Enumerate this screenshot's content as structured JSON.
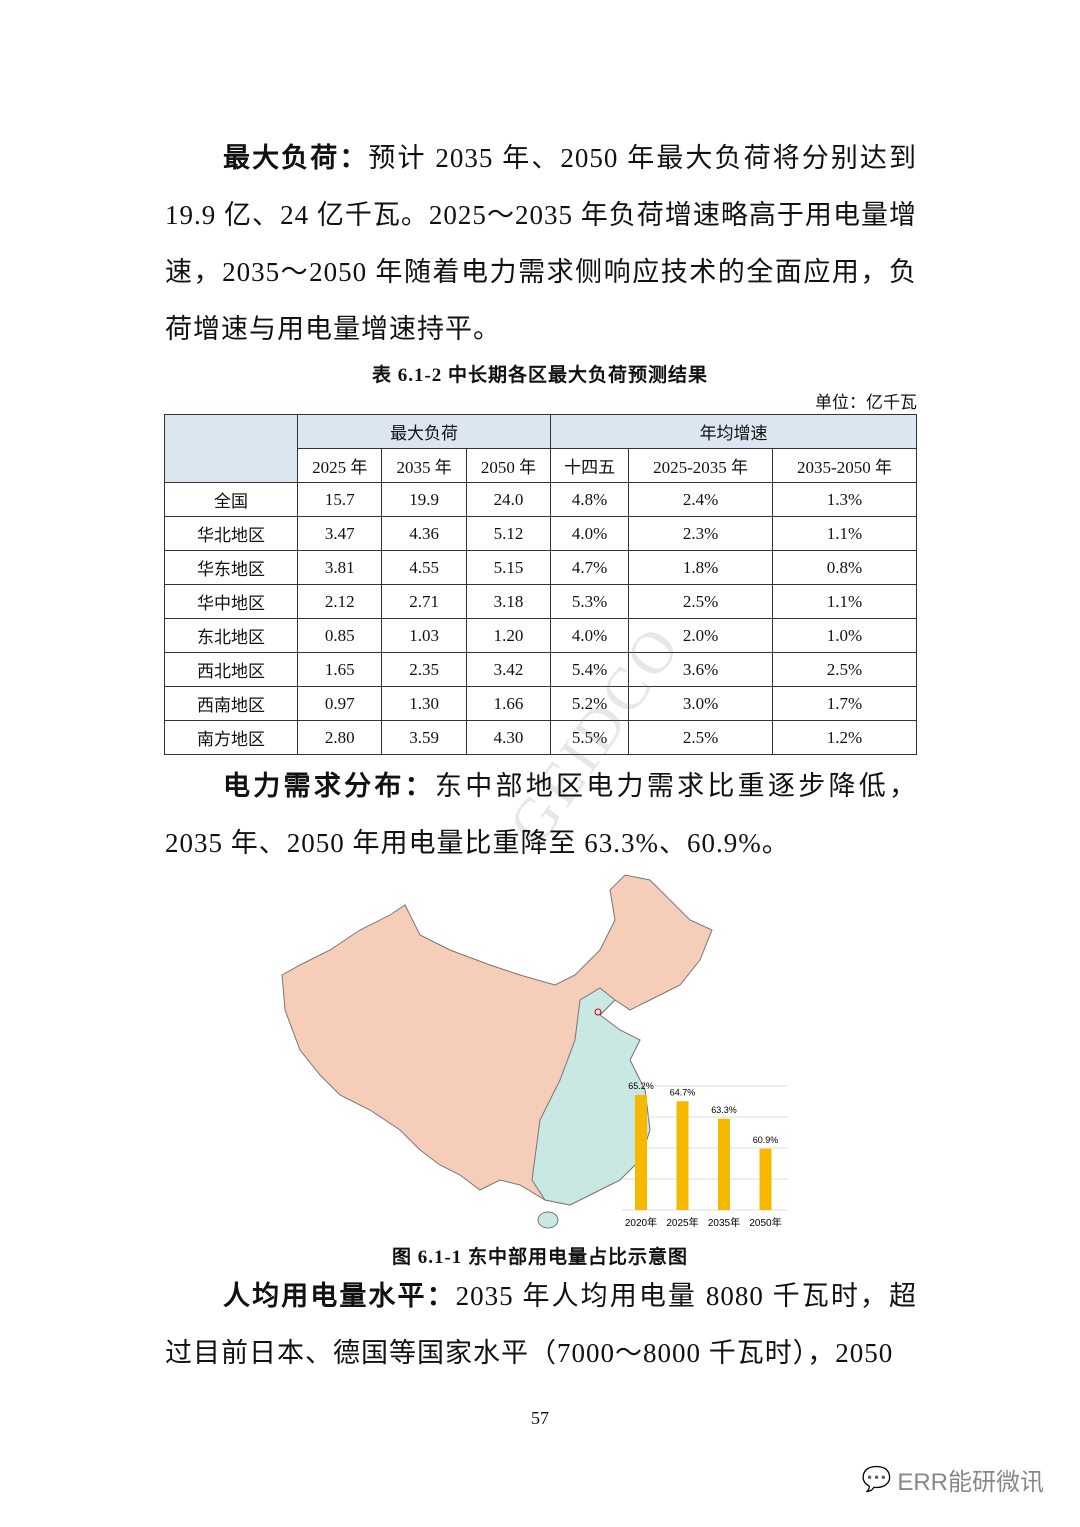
{
  "para1": {
    "heading": "最大负荷：",
    "text": "预计 2035 年、2050 年最大负荷将分别达到 19.9 亿、24 亿千瓦。2025～2035 年负荷增速略高于用电量增速，2035～2050 年随着电力需求侧响应技术的全面应用，负荷增速与用电量增速持平。"
  },
  "table": {
    "caption": "表 6.1-2  中长期各区最大负荷预测结果",
    "unit": "单位：亿千瓦",
    "group_headers": [
      "最大负荷",
      "年均增速"
    ],
    "sub_headers": [
      "2025 年",
      "2035 年",
      "2050 年",
      "十四五",
      "2025-2035 年",
      "2035-2050 年"
    ],
    "rows": [
      [
        "全国",
        "15.7",
        "19.9",
        "24.0",
        "4.8%",
        "2.4%",
        "1.3%"
      ],
      [
        "华北地区",
        "3.47",
        "4.36",
        "5.12",
        "4.0%",
        "2.3%",
        "1.1%"
      ],
      [
        "华东地区",
        "3.81",
        "4.55",
        "5.15",
        "4.7%",
        "1.8%",
        "0.8%"
      ],
      [
        "华中地区",
        "2.12",
        "2.71",
        "3.18",
        "5.3%",
        "2.5%",
        "1.1%"
      ],
      [
        "东北地区",
        "0.85",
        "1.03",
        "1.20",
        "4.0%",
        "2.0%",
        "1.0%"
      ],
      [
        "西北地区",
        "1.65",
        "2.35",
        "3.42",
        "5.4%",
        "3.6%",
        "2.5%"
      ],
      [
        "西南地区",
        "0.97",
        "1.30",
        "1.66",
        "5.2%",
        "3.0%",
        "1.7%"
      ],
      [
        "南方地区",
        "2.80",
        "3.59",
        "4.30",
        "5.5%",
        "2.5%",
        "1.2%"
      ]
    ]
  },
  "watermark_text": "GEIDCO",
  "para2": {
    "heading": "电力需求分布：",
    "text": "东中部地区电力需求比重逐步降低，2035 年、2050 年用电量比重降至 63.3%、60.9%。"
  },
  "figure": {
    "caption": "图 6.1-1  东中部用电量占比示意图",
    "colors": {
      "west": "#f6cdb8",
      "east": "#c9e8e4",
      "bar": "#f6b800"
    }
  },
  "chart_data": {
    "type": "bar",
    "categories": [
      "2020年",
      "2025年",
      "2035年",
      "2050年"
    ],
    "values": [
      65.2,
      64.7,
      63.3,
      60.9
    ],
    "data_labels": [
      "65.2%",
      "64.7%",
      "63.3%",
      "60.9%"
    ],
    "grid": true
  },
  "para3": {
    "heading": "人均用电量水平：",
    "text": "2035 年人均用电量 8080 千瓦时，超过目前日本、德国等国家水平（7000～8000 千瓦时），2050"
  },
  "page_number": "57",
  "footer_brand": "ERR能研微讯"
}
